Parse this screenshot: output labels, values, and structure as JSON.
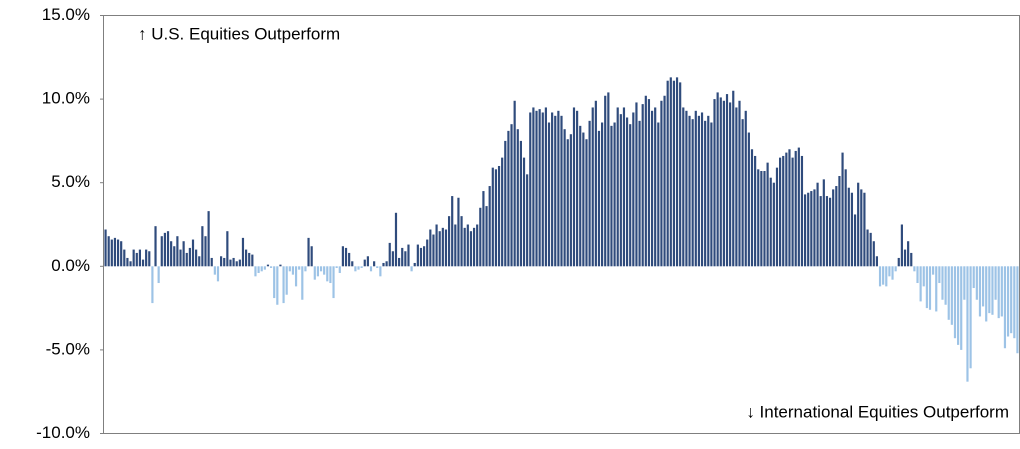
{
  "chart_data": {
    "type": "bar",
    "annotations": [
      "↑ U.S. Equities Outperform",
      "↓ International Equities Outperform"
    ],
    "color": "#2f4b7c",
    "negative_color": "#9dc3e6",
    "ylim": [
      -10,
      15
    ],
    "yticks": [
      {
        "value": -10,
        "label": "-10.0%"
      },
      {
        "value": -5,
        "label": "-5.0%"
      },
      {
        "value": 0,
        "label": "0.0%"
      },
      {
        "value": 5,
        "label": "5.0%"
      },
      {
        "value": 10,
        "label": "10.0%"
      },
      {
        "value": 15,
        "label": "15.0%"
      }
    ],
    "values": [
      2.2,
      1.8,
      1.6,
      1.7,
      1.6,
      1.5,
      1.0,
      0.5,
      0.3,
      1.0,
      0.8,
      1.0,
      0.4,
      1.0,
      0.9,
      -2.2,
      2.4,
      -1.0,
      1.8,
      2.0,
      2.1,
      1.5,
      1.2,
      1.8,
      1.0,
      1.5,
      0.8,
      1.1,
      1.6,
      1.0,
      0.6,
      2.4,
      1.8,
      3.3,
      0.5,
      -0.5,
      -0.9,
      0.6,
      0.5,
      2.1,
      0.4,
      0.5,
      0.3,
      0.4,
      1.7,
      1.0,
      0.8,
      0.7,
      -0.6,
      -0.4,
      -0.3,
      -0.2,
      0.1,
      -0.1,
      -1.9,
      -2.3,
      0.1,
      -2.2,
      -1.7,
      -0.3,
      -0.5,
      -1.2,
      -0.2,
      -2.0,
      -0.3,
      1.7,
      1.2,
      -0.8,
      -0.6,
      -0.3,
      -0.5,
      -0.9,
      -1.0,
      -1.9,
      -0.1,
      -0.4,
      1.2,
      1.1,
      0.8,
      0.3,
      -0.3,
      -0.2,
      -0.1,
      0.4,
      0.6,
      -0.3,
      0.3,
      -0.1,
      -0.6,
      0.2,
      0.3,
      1.4,
      0.9,
      3.2,
      0.5,
      1.1,
      0.9,
      1.3,
      -0.3,
      0.2,
      1.3,
      1.1,
      1.2,
      1.6,
      2.2,
      1.9,
      2.5,
      2.1,
      2.3,
      2.2,
      3.0,
      4.2,
      2.5,
      4.1,
      3.0,
      2.3,
      2.5,
      2.1,
      2.3,
      2.5,
      3.5,
      4.5,
      3.6,
      4.8,
      5.9,
      5.8,
      6.0,
      6.5,
      7.5,
      8.1,
      8.5,
      9.9,
      8.2,
      7.5,
      6.5,
      5.5,
      9.2,
      9.5,
      9.3,
      9.4,
      9.2,
      9.5,
      8.6,
      9.2,
      9.0,
      9.3,
      9.0,
      8.2,
      7.6,
      7.9,
      9.5,
      9.3,
      8.4,
      8.0,
      7.6,
      8.7,
      9.5,
      9.9,
      8.1,
      8.6,
      10.2,
      10.4,
      8.4,
      8.6,
      9.5,
      9.1,
      9.5,
      8.9,
      8.5,
      9.2,
      9.8,
      8.7,
      9.7,
      10.2,
      10.0,
      9.3,
      9.5,
      8.6,
      9.9,
      10.2,
      11.1,
      11.3,
      11.1,
      11.3,
      11.0,
      9.5,
      9.3,
      9.0,
      8.8,
      9.3,
      9.0,
      9.2,
      8.7,
      9.0,
      8.6,
      10.0,
      10.4,
      10.1,
      9.9,
      10.3,
      9.8,
      10.5,
      9.5,
      9.9,
      8.8,
      9.3,
      8.0,
      7.0,
      6.6,
      5.8,
      5.7,
      5.7,
      6.2,
      5.3,
      5.0,
      5.9,
      6.5,
      6.6,
      6.8,
      7.0,
      6.5,
      6.9,
      7.1,
      6.6,
      4.3,
      4.4,
      4.5,
      4.6,
      5.0,
      4.2,
      5.2,
      4.2,
      4.1,
      4.6,
      4.8,
      5.4,
      6.8,
      5.8,
      4.7,
      4.4,
      3.1,
      5.0,
      4.6,
      4.4,
      2.2,
      2.0,
      1.5,
      0.6,
      -1.2,
      -1.1,
      -1.2,
      -0.6,
      -0.8,
      -0.3,
      0.5,
      2.5,
      1.0,
      1.5,
      0.8,
      -0.3,
      -1.0,
      -2.1,
      -1.2,
      -2.5,
      -2.6,
      -0.5,
      -2.7,
      -1.0,
      -2.0,
      -2.3,
      -3.2,
      -3.5,
      -4.3,
      -4.7,
      -5.0,
      -2.0,
      -6.9,
      -6.1,
      -1.3,
      -2.0,
      -3.0,
      -2.4,
      -3.3,
      -2.8,
      -2.9,
      -2.0,
      -3.1,
      -3.0,
      -4.9,
      -4.2,
      -4.0,
      -4.3,
      -5.2
    ]
  }
}
